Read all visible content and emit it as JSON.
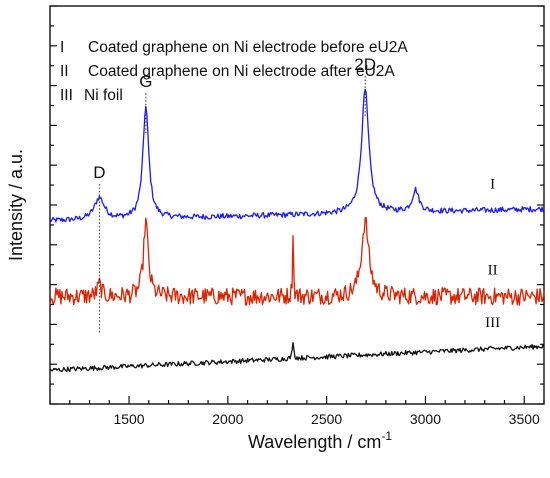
{
  "chart_data": {
    "type": "line",
    "title": "",
    "xlabel": "Wavelength / cm",
    "xlabel_superscript": "-1",
    "ylabel": "Intensity / a.u.",
    "xlim": [
      1100,
      3600
    ],
    "ylim": [
      0,
      10
    ],
    "x_ticks": [
      1500,
      2000,
      2500,
      3000,
      3500
    ],
    "y_ticks_labeled": false,
    "grid": false,
    "legend_position": "top-left",
    "legend": [
      {
        "numeral": "I",
        "text": "Coated graphene on Ni electrode before eU2A"
      },
      {
        "numeral": "II",
        "text": "Coated graphene on Ni electrode after eU2A"
      },
      {
        "numeral": "III",
        "text": "Ni foil"
      }
    ],
    "peaks": [
      {
        "label": "D",
        "x": 1350
      },
      {
        "label": "G",
        "x": 1585
      },
      {
        "label": "2D",
        "x": 2695
      }
    ],
    "series": [
      {
        "name": "I",
        "color": "#1a1aff",
        "baseline": 4.6,
        "peaks": [
          [
            1350,
            0.55,
            30
          ],
          [
            1585,
            2.8,
            18
          ],
          [
            2340,
            0.0,
            5
          ],
          [
            2695,
            3.1,
            22
          ],
          [
            2950,
            0.55,
            20
          ]
        ],
        "noise": 0.07,
        "slope": 0.00012
      },
      {
        "name": "II",
        "color": "#dd2200",
        "baseline": 2.7,
        "peaks": [
          [
            1350,
            0.3,
            12
          ],
          [
            1585,
            1.9,
            14
          ],
          [
            2330,
            1.6,
            3
          ],
          [
            2695,
            1.9,
            22
          ]
        ],
        "noise": 0.22,
        "slope": 0.0
      },
      {
        "name": "III",
        "color": "#111111",
        "baseline": 0.85,
        "peaks": [
          [
            2330,
            0.45,
            4
          ]
        ],
        "noise": 0.06,
        "slope": 0.00024
      }
    ],
    "series_labels": [
      {
        "text": "I",
        "x": 3340
      },
      {
        "text": "II",
        "x": 3340
      },
      {
        "text": "III",
        "x": 3340
      }
    ]
  }
}
